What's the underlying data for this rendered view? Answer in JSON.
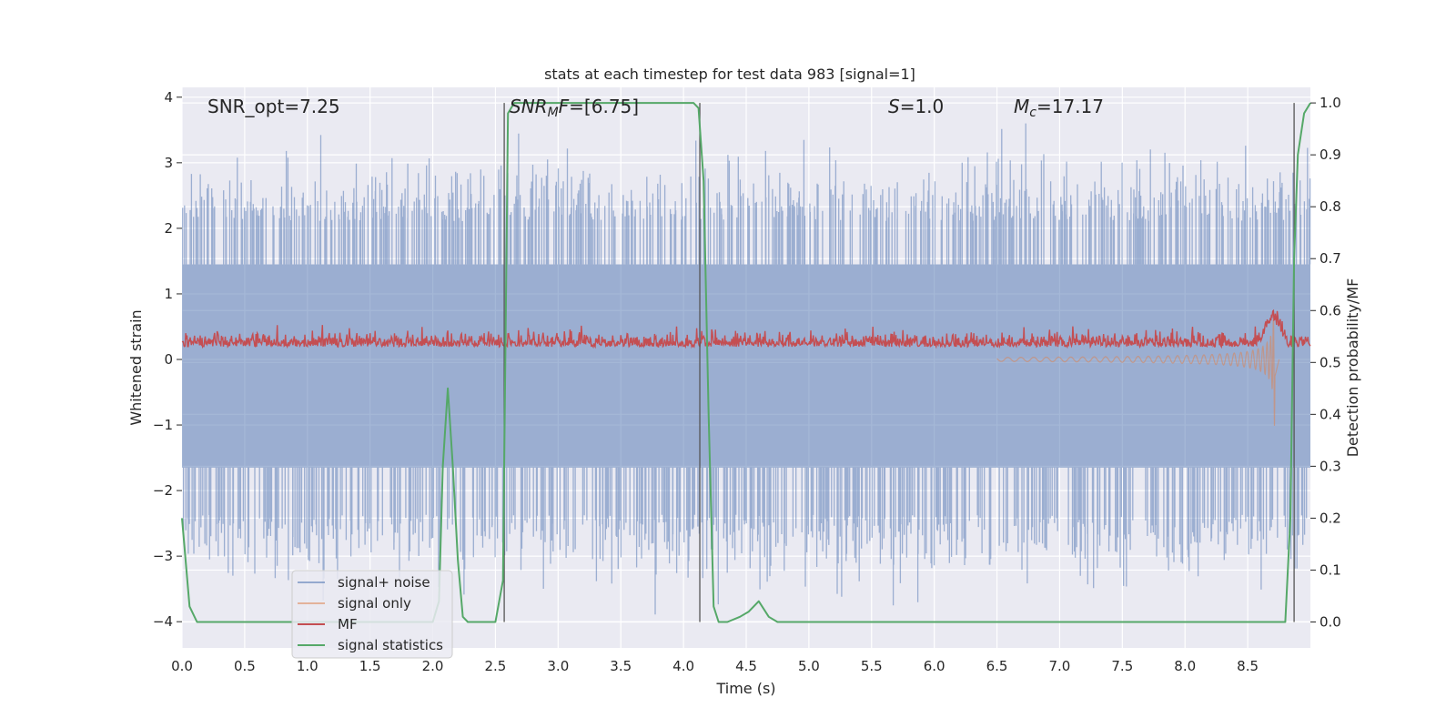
{
  "chart_data": {
    "type": "line",
    "title": "stats at each timestep for test data 983 [signal=1]",
    "xlabel": "Time (s)",
    "ylabel": "Whitened strain",
    "ylabel_right": "Detection probability/MF",
    "xlim": [
      0.0,
      9.0
    ],
    "ylim": [
      -4.4,
      4.15
    ],
    "ylim_right": [
      -0.05,
      1.03
    ],
    "xticks": [
      0.0,
      0.5,
      1.0,
      1.5,
      2.0,
      2.5,
      3.0,
      3.5,
      4.0,
      4.5,
      5.0,
      5.5,
      6.0,
      6.5,
      7.0,
      7.5,
      8.0,
      8.5
    ],
    "xtick_labels": [
      "0.0",
      "0.5",
      "1.0",
      "1.5",
      "2.0",
      "2.5",
      "3.0",
      "3.5",
      "4.0",
      "4.5",
      "5.0",
      "5.5",
      "6.0",
      "6.5",
      "7.0",
      "7.5",
      "8.0",
      "8.5"
    ],
    "yticks": [
      -4,
      -3,
      -2,
      -1,
      0,
      1,
      2,
      3,
      4
    ],
    "ytick_labels": [
      "−4",
      "−3",
      "−2",
      "−1",
      "0",
      "1",
      "2",
      "3",
      "4"
    ],
    "yticks_right": [
      0.0,
      0.1,
      0.2,
      0.3,
      0.4,
      0.5,
      0.6,
      0.7,
      0.8,
      0.9,
      1.0
    ],
    "ytick_labels_right": [
      "0.0",
      "0.1",
      "0.2",
      "0.3",
      "0.4",
      "0.5",
      "0.6",
      "0.7",
      "0.8",
      "0.9",
      "1.0"
    ],
    "grid": true,
    "legend_position": "lower-left",
    "annotations": {
      "snr_opt": "SNR_opt=7.25",
      "snr_mf_sym": "SNR",
      "snr_mf_sub": "M",
      "snr_mf_sym2": "F",
      "snr_mf_val": "=[6.75]",
      "s_sym": "S",
      "s_val": "=1.0",
      "mc_sym": "M",
      "mc_sub": "c",
      "mc_val": "=17.17"
    },
    "vertical_lines_x": [
      2.57,
      4.13,
      8.87
    ],
    "series": [
      {
        "name": "signal+ noise",
        "color": "#4c72b0",
        "axis": "left",
        "band": [
          -1.65,
          1.45
        ],
        "spike_range": [
          -4.0,
          3.6
        ]
      },
      {
        "name": "signal only",
        "color": "#dd8452",
        "axis": "left",
        "chirp_start_x": 6.5,
        "chirp_end_x": 8.72,
        "peak_amplitude": 1.5
      },
      {
        "name": "MF",
        "color": "#c44e52",
        "axis": "right",
        "baseline": 0.53,
        "range": [
          0.5,
          0.59
        ],
        "peak": [
          8.7,
          0.6
        ]
      },
      {
        "name": "signal statistics",
        "color": "#55a868",
        "axis": "right",
        "x": [
          0.0,
          0.06,
          0.12,
          0.2,
          0.5,
          1.0,
          1.5,
          1.9,
          2.0,
          2.05,
          2.08,
          2.12,
          2.16,
          2.2,
          2.24,
          2.28,
          2.35,
          2.5,
          2.56,
          2.6,
          2.65,
          3.0,
          3.5,
          4.0,
          4.08,
          4.12,
          4.16,
          4.2,
          4.24,
          4.28,
          4.35,
          4.45,
          4.52,
          4.6,
          4.68,
          4.75,
          5.0,
          6.0,
          7.0,
          8.0,
          8.5,
          8.8,
          8.84,
          8.87,
          8.9,
          8.95,
          9.0
        ],
        "y": [
          0.2,
          0.03,
          0.0,
          0.0,
          0.0,
          0.0,
          0.0,
          0.0,
          0.0,
          0.04,
          0.3,
          0.45,
          0.3,
          0.12,
          0.01,
          0.0,
          0.0,
          0.0,
          0.08,
          0.98,
          1.0,
          1.0,
          1.0,
          1.0,
          1.0,
          0.99,
          0.85,
          0.4,
          0.03,
          0.0,
          0.0,
          0.01,
          0.02,
          0.04,
          0.01,
          0.0,
          0.0,
          0.0,
          0.0,
          0.0,
          0.0,
          0.0,
          0.2,
          0.7,
          0.9,
          0.98,
          1.0
        ]
      }
    ]
  }
}
